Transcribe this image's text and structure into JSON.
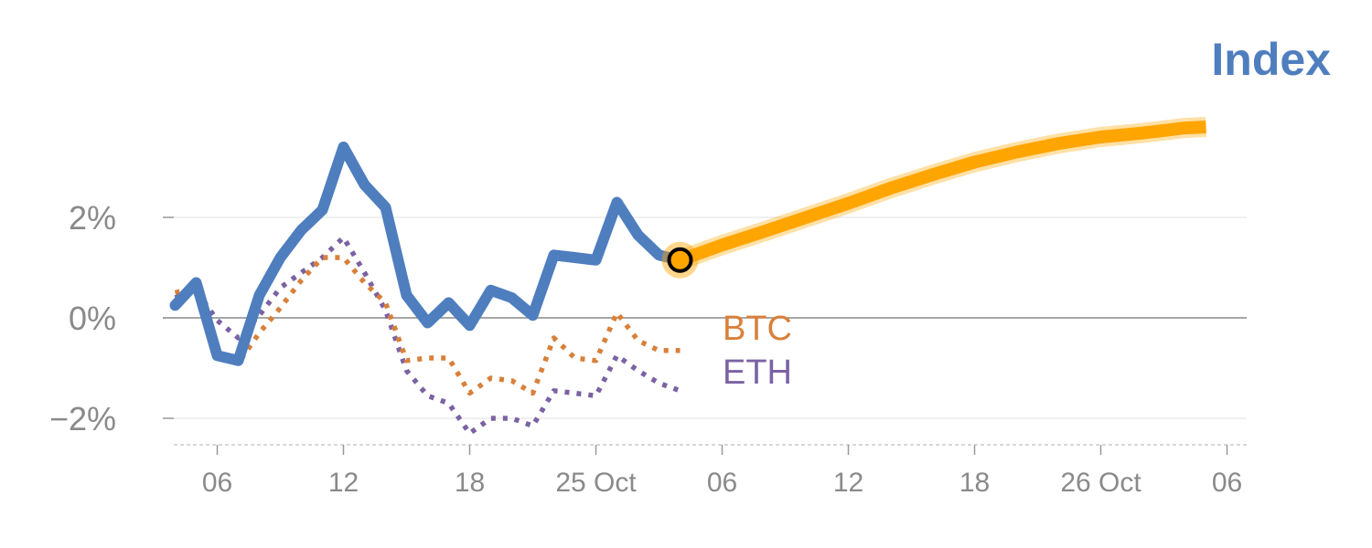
{
  "chart_data": {
    "type": "line",
    "title": "",
    "xlabel": "",
    "ylabel": "",
    "ylim": [
      -2.5,
      4.0
    ],
    "y_ticks": [
      {
        "value": -2,
        "label": "−2%"
      },
      {
        "value": 0,
        "label": "0%"
      },
      {
        "value": 2,
        "label": "2%"
      }
    ],
    "x_ticks": [
      {
        "day": 6,
        "label": "06"
      },
      {
        "day": 12,
        "label": "12"
      },
      {
        "day": 18,
        "label": "18"
      },
      {
        "day": 24,
        "label": "25 Oct"
      },
      {
        "day": 30,
        "label": "06"
      },
      {
        "day": 36,
        "label": "12"
      },
      {
        "day": 42,
        "label": "18"
      },
      {
        "day": 48,
        "label": "26 Oct"
      },
      {
        "day": 54,
        "label": "06"
      }
    ],
    "grid": true,
    "legend_title": "Index",
    "series": [
      {
        "name": "Index",
        "style": "solid",
        "color": "#4f7ebf",
        "x": [
          4,
          5,
          6,
          7,
          8,
          9,
          10,
          11,
          12,
          13,
          14,
          15,
          16,
          17,
          18,
          19,
          20,
          21,
          22,
          23,
          24,
          25,
          26,
          27,
          28
        ],
        "values": [
          0.25,
          0.7,
          -0.75,
          -0.85,
          0.45,
          1.2,
          1.75,
          2.15,
          3.4,
          2.65,
          2.2,
          0.45,
          -0.1,
          0.3,
          -0.15,
          0.55,
          0.4,
          0.05,
          1.25,
          1.2,
          1.15,
          2.3,
          1.65,
          1.25,
          1.15
        ]
      },
      {
        "name": "BTC",
        "style": "dotted",
        "color": "#d8803a",
        "x": [
          4,
          5,
          6,
          7,
          8,
          9,
          10,
          11,
          12,
          13,
          14,
          15,
          16,
          17,
          18,
          19,
          20,
          21,
          22,
          23,
          24,
          25,
          26,
          27,
          28
        ],
        "values": [
          0.5,
          0.6,
          -0.7,
          -0.9,
          -0.3,
          0.2,
          0.75,
          1.2,
          1.2,
          0.7,
          0.3,
          -0.85,
          -0.8,
          -0.8,
          -1.5,
          -1.2,
          -1.25,
          -1.5,
          -0.4,
          -0.8,
          -0.85,
          0.1,
          -0.45,
          -0.65,
          -0.65
        ]
      },
      {
        "name": "ETH",
        "style": "dotted",
        "color": "#7b62a3",
        "x": [
          4,
          5,
          6,
          7,
          8,
          9,
          10,
          11,
          12,
          13,
          14,
          15,
          16,
          17,
          18,
          19,
          20,
          21,
          22,
          23,
          24,
          25,
          26,
          27,
          28
        ],
        "values": [
          0.4,
          0.55,
          -0.05,
          -0.4,
          0.05,
          0.6,
          0.9,
          1.2,
          1.6,
          0.9,
          0.15,
          -1.05,
          -1.55,
          -1.7,
          -2.3,
          -2.0,
          -2.0,
          -2.15,
          -1.45,
          -1.5,
          -1.55,
          -0.75,
          -1.05,
          -1.3,
          -1.45
        ]
      },
      {
        "name": "Index forecast",
        "style": "thick",
        "color": "#ffa500",
        "x": [
          28,
          30,
          32,
          34,
          36,
          38,
          40,
          42,
          44,
          46,
          48,
          50,
          52,
          53
        ],
        "values": [
          1.15,
          1.45,
          1.72,
          2.0,
          2.28,
          2.58,
          2.85,
          3.1,
          3.3,
          3.47,
          3.6,
          3.68,
          3.78,
          3.8
        ]
      }
    ],
    "series_labels": [
      {
        "text": "BTC",
        "color": "#d8803a"
      },
      {
        "text": "ETH",
        "color": "#7b62a3"
      }
    ],
    "marker": {
      "x": 28,
      "y": 1.15,
      "fill": "#ffa500",
      "stroke": "#000000"
    },
    "colors": {
      "title": "#4f7ebf",
      "tick_text": "#8a8a8a",
      "grid": "#e6e6e6",
      "zero_line": "#888888",
      "axis": "#cccccc"
    }
  }
}
